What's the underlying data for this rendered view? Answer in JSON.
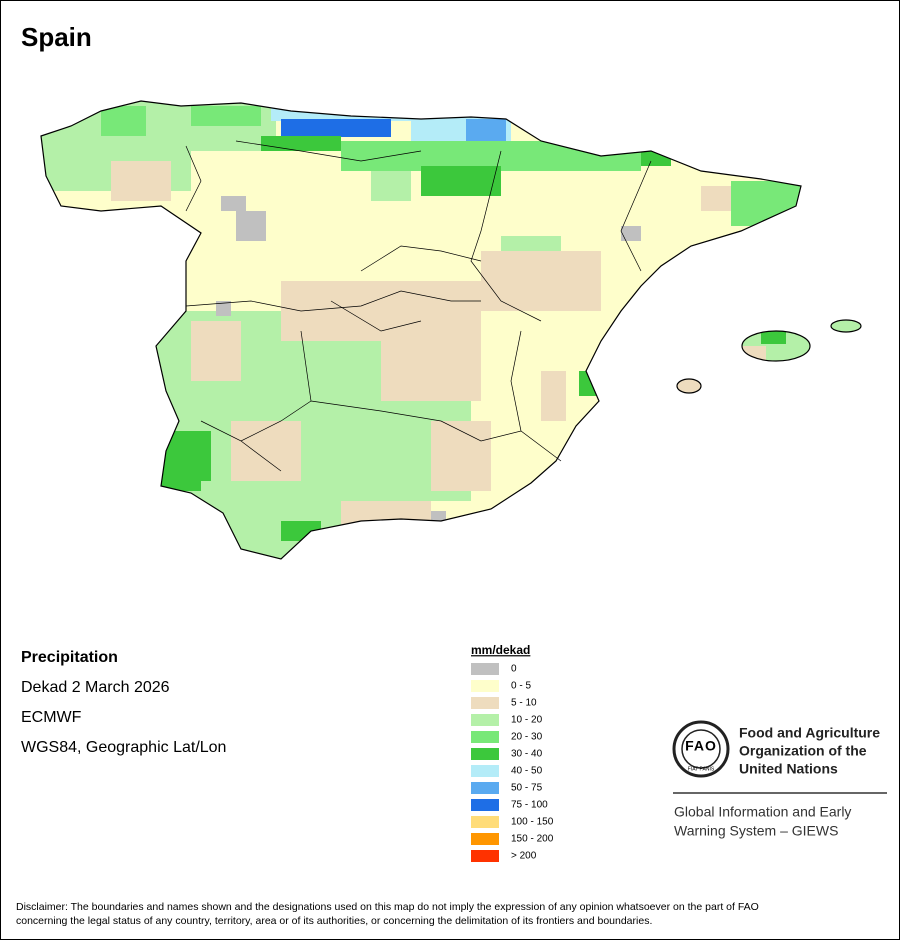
{
  "title": "Spain",
  "info": [
    "Precipitation",
    "Dekad 2 March 2026",
    "ECMWF",
    "WGS84, Geographic Lat/Lon"
  ],
  "legend": {
    "title": "mm/dekad",
    "items": [
      {
        "label": "0",
        "color": "#c0c0c0"
      },
      {
        "label": "0 - 5",
        "color": "#fefecb"
      },
      {
        "label": "5 - 10",
        "color": "#eedcbe"
      },
      {
        "label": "10 - 20",
        "color": "#b4f0a8"
      },
      {
        "label": "20 - 30",
        "color": "#78e878"
      },
      {
        "label": "30 - 40",
        "color": "#3cc83c"
      },
      {
        "label": "40 - 50",
        "color": "#b4ecf8"
      },
      {
        "label": "50 - 75",
        "color": "#5aaaf0"
      },
      {
        "label": "75 - 100",
        "color": "#1e6ee6"
      },
      {
        "label": "100 - 150",
        "color": "#ffdc78"
      },
      {
        "label": "150 - 200",
        "color": "#ff9600"
      },
      {
        "label": "> 200",
        "color": "#ff3200"
      }
    ]
  },
  "organization": {
    "logo_text": "FAO",
    "logo_motto": "FIAT PANIS",
    "name": [
      "Food and Agriculture",
      "Organization of the",
      "United Nations"
    ]
  },
  "program": [
    "Global Information and Early",
    "Warning System – GIEWS"
  ],
  "disclaimer": [
    "Disclaimer: The boundaries and names shown and the designations used on this map do not imply the expression of any opinion whatsoever on the part of FAO",
    "concerning the legal status of any country, territory, area or of its authorities, or concerning the delimitation of its frontiers and boundaries."
  ]
}
